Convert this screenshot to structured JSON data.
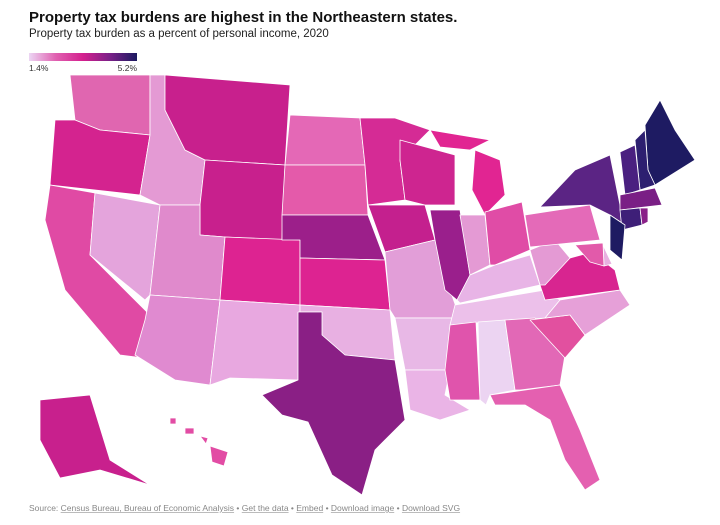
{
  "title": "Property tax burdens are highest in the Northeastern states.",
  "subtitle": "Property tax burden as a percent of personal income, 2020",
  "legend": {
    "min_label": "1.4%",
    "max_label": "5.2%",
    "colors": [
      "#ecd6f4",
      "#e060b0",
      "#d4208e",
      "#7a2088",
      "#1b1a60"
    ]
  },
  "footer": {
    "source_prefix": "Source: ",
    "source_link": "Census Bureau, Bureau of Economic Analysis",
    "sep": " • ",
    "links": [
      "Get the data",
      "Embed",
      "Download image",
      "Download SVG"
    ]
  },
  "chart_data": {
    "type": "choropleth",
    "scale": {
      "min": 1.4,
      "max": 5.2,
      "unit": "%"
    },
    "state_colors": {
      "WA": "#e066b0",
      "OR": "#d4238f",
      "CA": "#e04aa4",
      "NV": "#e4a4dc",
      "ID": "#e49ad4",
      "MT": "#c8208d",
      "WY": "#c8208d",
      "UT": "#e08acc",
      "AZ": "#e08ad0",
      "CO": "#dd2391",
      "NM": "#e8a8e0",
      "ND": "#e468b6",
      "SD": "#e45aaa",
      "NE": "#9c1f8a",
      "KS": "#dd2391",
      "OK": "#e8b0e2",
      "TX": "#8a1f85",
      "MN": "#d52b95",
      "IA": "#c4208e",
      "MO": "#e29ed8",
      "AR": "#e8b8e6",
      "LA": "#eab4e6",
      "WI": "#ce2590",
      "IL": "#9a1f8c",
      "MI": "#e12592",
      "IN": "#e49ad4",
      "OH": "#e04ca6",
      "KY": "#e8b4e6",
      "TN": "#ecc0ea",
      "MS": "#e054ac",
      "AL": "#ecd4f2",
      "GA": "#e268b6",
      "FL": "#e460b0",
      "SC": "#e2509f",
      "NC": "#e6a0d8",
      "VA": "#d82590",
      "WV": "#e49ad4",
      "PA": "#e46ab8",
      "NY": "#5b2484",
      "ME": "#1e1b62",
      "NH": "#2d1f70",
      "VT": "#4a2080",
      "MA": "#7a1f85",
      "CT": "#3e1f78",
      "RI": "#8a2088",
      "NJ": "#1e1b62",
      "DE": "#e8b0e0",
      "MD": "#e25aaa",
      "AK": "#c8208d",
      "HI": "#e24ca4"
    }
  }
}
